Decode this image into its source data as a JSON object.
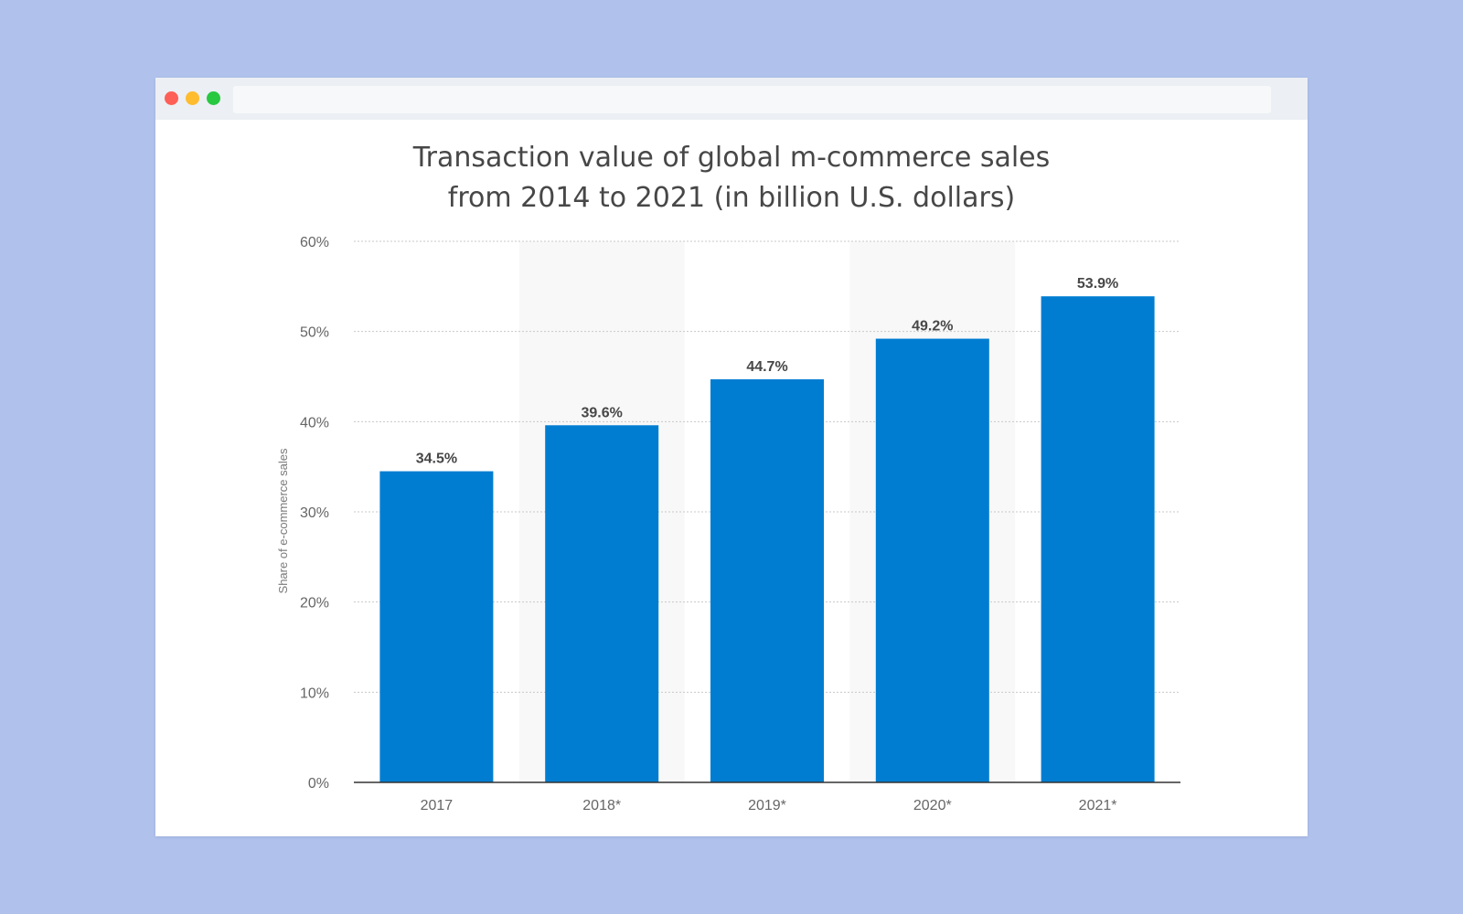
{
  "window": {
    "url": ""
  },
  "chart_data": {
    "type": "bar",
    "title_lines": [
      "Transaction value of global m-commerce sales",
      "from 2014 to 2021 (in billion U.S. dollars)"
    ],
    "categories": [
      "2017",
      "2018*",
      "2019*",
      "2020*",
      "2021*"
    ],
    "values": [
      34.5,
      39.6,
      44.7,
      49.2,
      53.9
    ],
    "data_labels": [
      "34.5%",
      "39.6%",
      "44.7%",
      "49.2%",
      "53.9%"
    ],
    "xlabel": "",
    "ylabel": "Share of e-commerce sales",
    "ylim": [
      0,
      60
    ],
    "yticks": [
      0,
      10,
      20,
      30,
      40,
      50,
      60
    ],
    "ytick_labels": [
      "0%",
      "10%",
      "20%",
      "30%",
      "40%",
      "50%",
      "60%"
    ],
    "grid": true,
    "bar_color": "#007dd1",
    "alternate_band_color": "#f8f8f8"
  }
}
